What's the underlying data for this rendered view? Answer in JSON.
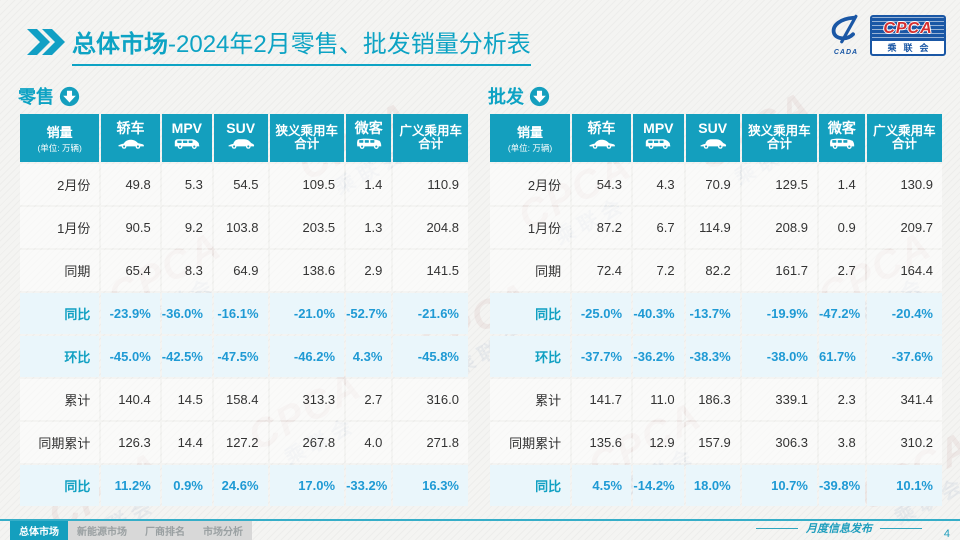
{
  "header": {
    "title_bold": "总体市场",
    "title_rest": "-2024年2月零售、批发销量分析表",
    "logo": {
      "emblem_text": "CADA",
      "acronym": "CPCA",
      "name_cn": "乘联会"
    }
  },
  "colors": {
    "accent": "#149fbe",
    "highlight_text": "#1f9ad4",
    "logo_blue": "#1a57a5",
    "logo_red": "#d42f2f"
  },
  "watermark": {
    "line1": "CPCA",
    "line2": "乘联会"
  },
  "tables": {
    "retail": {
      "section_label": "零售",
      "unit_line1": "销量",
      "unit_line2": "(单位: 万辆)",
      "columns": [
        {
          "label": "轿车",
          "icon": "sedan-icon"
        },
        {
          "label": "MPV",
          "icon": "mpv-icon"
        },
        {
          "label": "SUV",
          "icon": "suv-icon"
        },
        {
          "label": "狭义乘用车\n合计"
        },
        {
          "label": "微客",
          "icon": "microvan-icon"
        },
        {
          "label": "广义乘用车\n合计"
        }
      ],
      "rows": [
        {
          "label": "2月份",
          "highlight": false,
          "values": [
            "49.8",
            "5.3",
            "54.5",
            "109.5",
            "1.4",
            "110.9"
          ]
        },
        {
          "label": "1月份",
          "highlight": false,
          "values": [
            "90.5",
            "9.2",
            "103.8",
            "203.5",
            "1.3",
            "204.8"
          ]
        },
        {
          "label": "同期",
          "highlight": false,
          "values": [
            "65.4",
            "8.3",
            "64.9",
            "138.6",
            "2.9",
            "141.5"
          ]
        },
        {
          "label": "同比",
          "highlight": true,
          "values": [
            "-23.9%",
            "-36.0%",
            "-16.1%",
            "-21.0%",
            "-52.7%",
            "-21.6%"
          ]
        },
        {
          "label": "环比",
          "highlight": true,
          "values": [
            "-45.0%",
            "-42.5%",
            "-47.5%",
            "-46.2%",
            "4.3%",
            "-45.8%"
          ]
        },
        {
          "label": "累计",
          "highlight": false,
          "values": [
            "140.4",
            "14.5",
            "158.4",
            "313.3",
            "2.7",
            "316.0"
          ]
        },
        {
          "label": "同期累计",
          "highlight": false,
          "values": [
            "126.3",
            "14.4",
            "127.2",
            "267.8",
            "4.0",
            "271.8"
          ]
        },
        {
          "label": "同比",
          "highlight": true,
          "values": [
            "11.2%",
            "0.9%",
            "24.6%",
            "17.0%",
            "-33.2%",
            "16.3%"
          ]
        }
      ]
    },
    "wholesale": {
      "section_label": "批发",
      "unit_line1": "销量",
      "unit_line2": "(单位: 万辆)",
      "columns": [
        {
          "label": "轿车",
          "icon": "sedan-icon"
        },
        {
          "label": "MPV",
          "icon": "mpv-icon"
        },
        {
          "label": "SUV",
          "icon": "suv-icon"
        },
        {
          "label": "狭义乘用车\n合计"
        },
        {
          "label": "微客",
          "icon": "microvan-icon"
        },
        {
          "label": "广义乘用车\n合计"
        }
      ],
      "rows": [
        {
          "label": "2月份",
          "highlight": false,
          "values": [
            "54.3",
            "4.3",
            "70.9",
            "129.5",
            "1.4",
            "130.9"
          ]
        },
        {
          "label": "1月份",
          "highlight": false,
          "values": [
            "87.2",
            "6.7",
            "114.9",
            "208.9",
            "0.9",
            "209.7"
          ]
        },
        {
          "label": "同期",
          "highlight": false,
          "values": [
            "72.4",
            "7.2",
            "82.2",
            "161.7",
            "2.7",
            "164.4"
          ]
        },
        {
          "label": "同比",
          "highlight": true,
          "values": [
            "-25.0%",
            "-40.3%",
            "-13.7%",
            "-19.9%",
            "-47.2%",
            "-20.4%"
          ]
        },
        {
          "label": "环比",
          "highlight": true,
          "values": [
            "-37.7%",
            "-36.2%",
            "-38.3%",
            "-38.0%",
            "61.7%",
            "-37.6%"
          ]
        },
        {
          "label": "累计",
          "highlight": false,
          "values": [
            "141.7",
            "11.0",
            "186.3",
            "339.1",
            "2.3",
            "341.4"
          ]
        },
        {
          "label": "同期累计",
          "highlight": false,
          "values": [
            "135.6",
            "12.9",
            "157.9",
            "306.3",
            "3.8",
            "310.2"
          ]
        },
        {
          "label": "同比",
          "highlight": true,
          "values": [
            "4.5%",
            "-14.2%",
            "18.0%",
            "10.7%",
            "-39.8%",
            "10.1%"
          ]
        }
      ]
    }
  },
  "footer": {
    "tabs": [
      {
        "label": "总体市场",
        "active": true
      },
      {
        "label": "新能源市场",
        "active": false
      },
      {
        "label": "厂商排名",
        "active": false
      },
      {
        "label": "市场分析",
        "active": false
      }
    ],
    "release_label": "月度信息发布",
    "page_number": "4"
  }
}
